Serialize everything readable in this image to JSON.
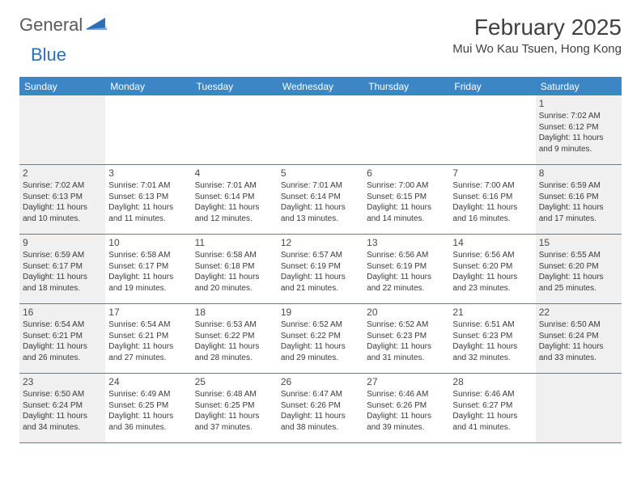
{
  "logo": {
    "general": "General",
    "blue": "Blue"
  },
  "title": "February 2025",
  "location": "Mui Wo Kau Tsuen, Hong Kong",
  "colors": {
    "headerBlue": "#3d86c6",
    "shadeGray": "#f0f0f0",
    "text": "#333333",
    "logoBlue": "#2d6fb5"
  },
  "dow": [
    "Sunday",
    "Monday",
    "Tuesday",
    "Wednesday",
    "Thursday",
    "Friday",
    "Saturday"
  ],
  "weeks": [
    [
      {
        "n": "",
        "sr": "",
        "ss": "",
        "dl": ""
      },
      {
        "n": "",
        "sr": "",
        "ss": "",
        "dl": ""
      },
      {
        "n": "",
        "sr": "",
        "ss": "",
        "dl": ""
      },
      {
        "n": "",
        "sr": "",
        "ss": "",
        "dl": ""
      },
      {
        "n": "",
        "sr": "",
        "ss": "",
        "dl": ""
      },
      {
        "n": "",
        "sr": "",
        "ss": "",
        "dl": ""
      },
      {
        "n": "1",
        "sr": "Sunrise: 7:02 AM",
        "ss": "Sunset: 6:12 PM",
        "dl": "Daylight: 11 hours and 9 minutes."
      }
    ],
    [
      {
        "n": "2",
        "sr": "Sunrise: 7:02 AM",
        "ss": "Sunset: 6:13 PM",
        "dl": "Daylight: 11 hours and 10 minutes."
      },
      {
        "n": "3",
        "sr": "Sunrise: 7:01 AM",
        "ss": "Sunset: 6:13 PM",
        "dl": "Daylight: 11 hours and 11 minutes."
      },
      {
        "n": "4",
        "sr": "Sunrise: 7:01 AM",
        "ss": "Sunset: 6:14 PM",
        "dl": "Daylight: 11 hours and 12 minutes."
      },
      {
        "n": "5",
        "sr": "Sunrise: 7:01 AM",
        "ss": "Sunset: 6:14 PM",
        "dl": "Daylight: 11 hours and 13 minutes."
      },
      {
        "n": "6",
        "sr": "Sunrise: 7:00 AM",
        "ss": "Sunset: 6:15 PM",
        "dl": "Daylight: 11 hours and 14 minutes."
      },
      {
        "n": "7",
        "sr": "Sunrise: 7:00 AM",
        "ss": "Sunset: 6:16 PM",
        "dl": "Daylight: 11 hours and 16 minutes."
      },
      {
        "n": "8",
        "sr": "Sunrise: 6:59 AM",
        "ss": "Sunset: 6:16 PM",
        "dl": "Daylight: 11 hours and 17 minutes."
      }
    ],
    [
      {
        "n": "9",
        "sr": "Sunrise: 6:59 AM",
        "ss": "Sunset: 6:17 PM",
        "dl": "Daylight: 11 hours and 18 minutes."
      },
      {
        "n": "10",
        "sr": "Sunrise: 6:58 AM",
        "ss": "Sunset: 6:17 PM",
        "dl": "Daylight: 11 hours and 19 minutes."
      },
      {
        "n": "11",
        "sr": "Sunrise: 6:58 AM",
        "ss": "Sunset: 6:18 PM",
        "dl": "Daylight: 11 hours and 20 minutes."
      },
      {
        "n": "12",
        "sr": "Sunrise: 6:57 AM",
        "ss": "Sunset: 6:19 PM",
        "dl": "Daylight: 11 hours and 21 minutes."
      },
      {
        "n": "13",
        "sr": "Sunrise: 6:56 AM",
        "ss": "Sunset: 6:19 PM",
        "dl": "Daylight: 11 hours and 22 minutes."
      },
      {
        "n": "14",
        "sr": "Sunrise: 6:56 AM",
        "ss": "Sunset: 6:20 PM",
        "dl": "Daylight: 11 hours and 23 minutes."
      },
      {
        "n": "15",
        "sr": "Sunrise: 6:55 AM",
        "ss": "Sunset: 6:20 PM",
        "dl": "Daylight: 11 hours and 25 minutes."
      }
    ],
    [
      {
        "n": "16",
        "sr": "Sunrise: 6:54 AM",
        "ss": "Sunset: 6:21 PM",
        "dl": "Daylight: 11 hours and 26 minutes."
      },
      {
        "n": "17",
        "sr": "Sunrise: 6:54 AM",
        "ss": "Sunset: 6:21 PM",
        "dl": "Daylight: 11 hours and 27 minutes."
      },
      {
        "n": "18",
        "sr": "Sunrise: 6:53 AM",
        "ss": "Sunset: 6:22 PM",
        "dl": "Daylight: 11 hours and 28 minutes."
      },
      {
        "n": "19",
        "sr": "Sunrise: 6:52 AM",
        "ss": "Sunset: 6:22 PM",
        "dl": "Daylight: 11 hours and 29 minutes."
      },
      {
        "n": "20",
        "sr": "Sunrise: 6:52 AM",
        "ss": "Sunset: 6:23 PM",
        "dl": "Daylight: 11 hours and 31 minutes."
      },
      {
        "n": "21",
        "sr": "Sunrise: 6:51 AM",
        "ss": "Sunset: 6:23 PM",
        "dl": "Daylight: 11 hours and 32 minutes."
      },
      {
        "n": "22",
        "sr": "Sunrise: 6:50 AM",
        "ss": "Sunset: 6:24 PM",
        "dl": "Daylight: 11 hours and 33 minutes."
      }
    ],
    [
      {
        "n": "23",
        "sr": "Sunrise: 6:50 AM",
        "ss": "Sunset: 6:24 PM",
        "dl": "Daylight: 11 hours and 34 minutes."
      },
      {
        "n": "24",
        "sr": "Sunrise: 6:49 AM",
        "ss": "Sunset: 6:25 PM",
        "dl": "Daylight: 11 hours and 36 minutes."
      },
      {
        "n": "25",
        "sr": "Sunrise: 6:48 AM",
        "ss": "Sunset: 6:25 PM",
        "dl": "Daylight: 11 hours and 37 minutes."
      },
      {
        "n": "26",
        "sr": "Sunrise: 6:47 AM",
        "ss": "Sunset: 6:26 PM",
        "dl": "Daylight: 11 hours and 38 minutes."
      },
      {
        "n": "27",
        "sr": "Sunrise: 6:46 AM",
        "ss": "Sunset: 6:26 PM",
        "dl": "Daylight: 11 hours and 39 minutes."
      },
      {
        "n": "28",
        "sr": "Sunrise: 6:46 AM",
        "ss": "Sunset: 6:27 PM",
        "dl": "Daylight: 11 hours and 41 minutes."
      },
      {
        "n": "",
        "sr": "",
        "ss": "",
        "dl": ""
      }
    ]
  ]
}
